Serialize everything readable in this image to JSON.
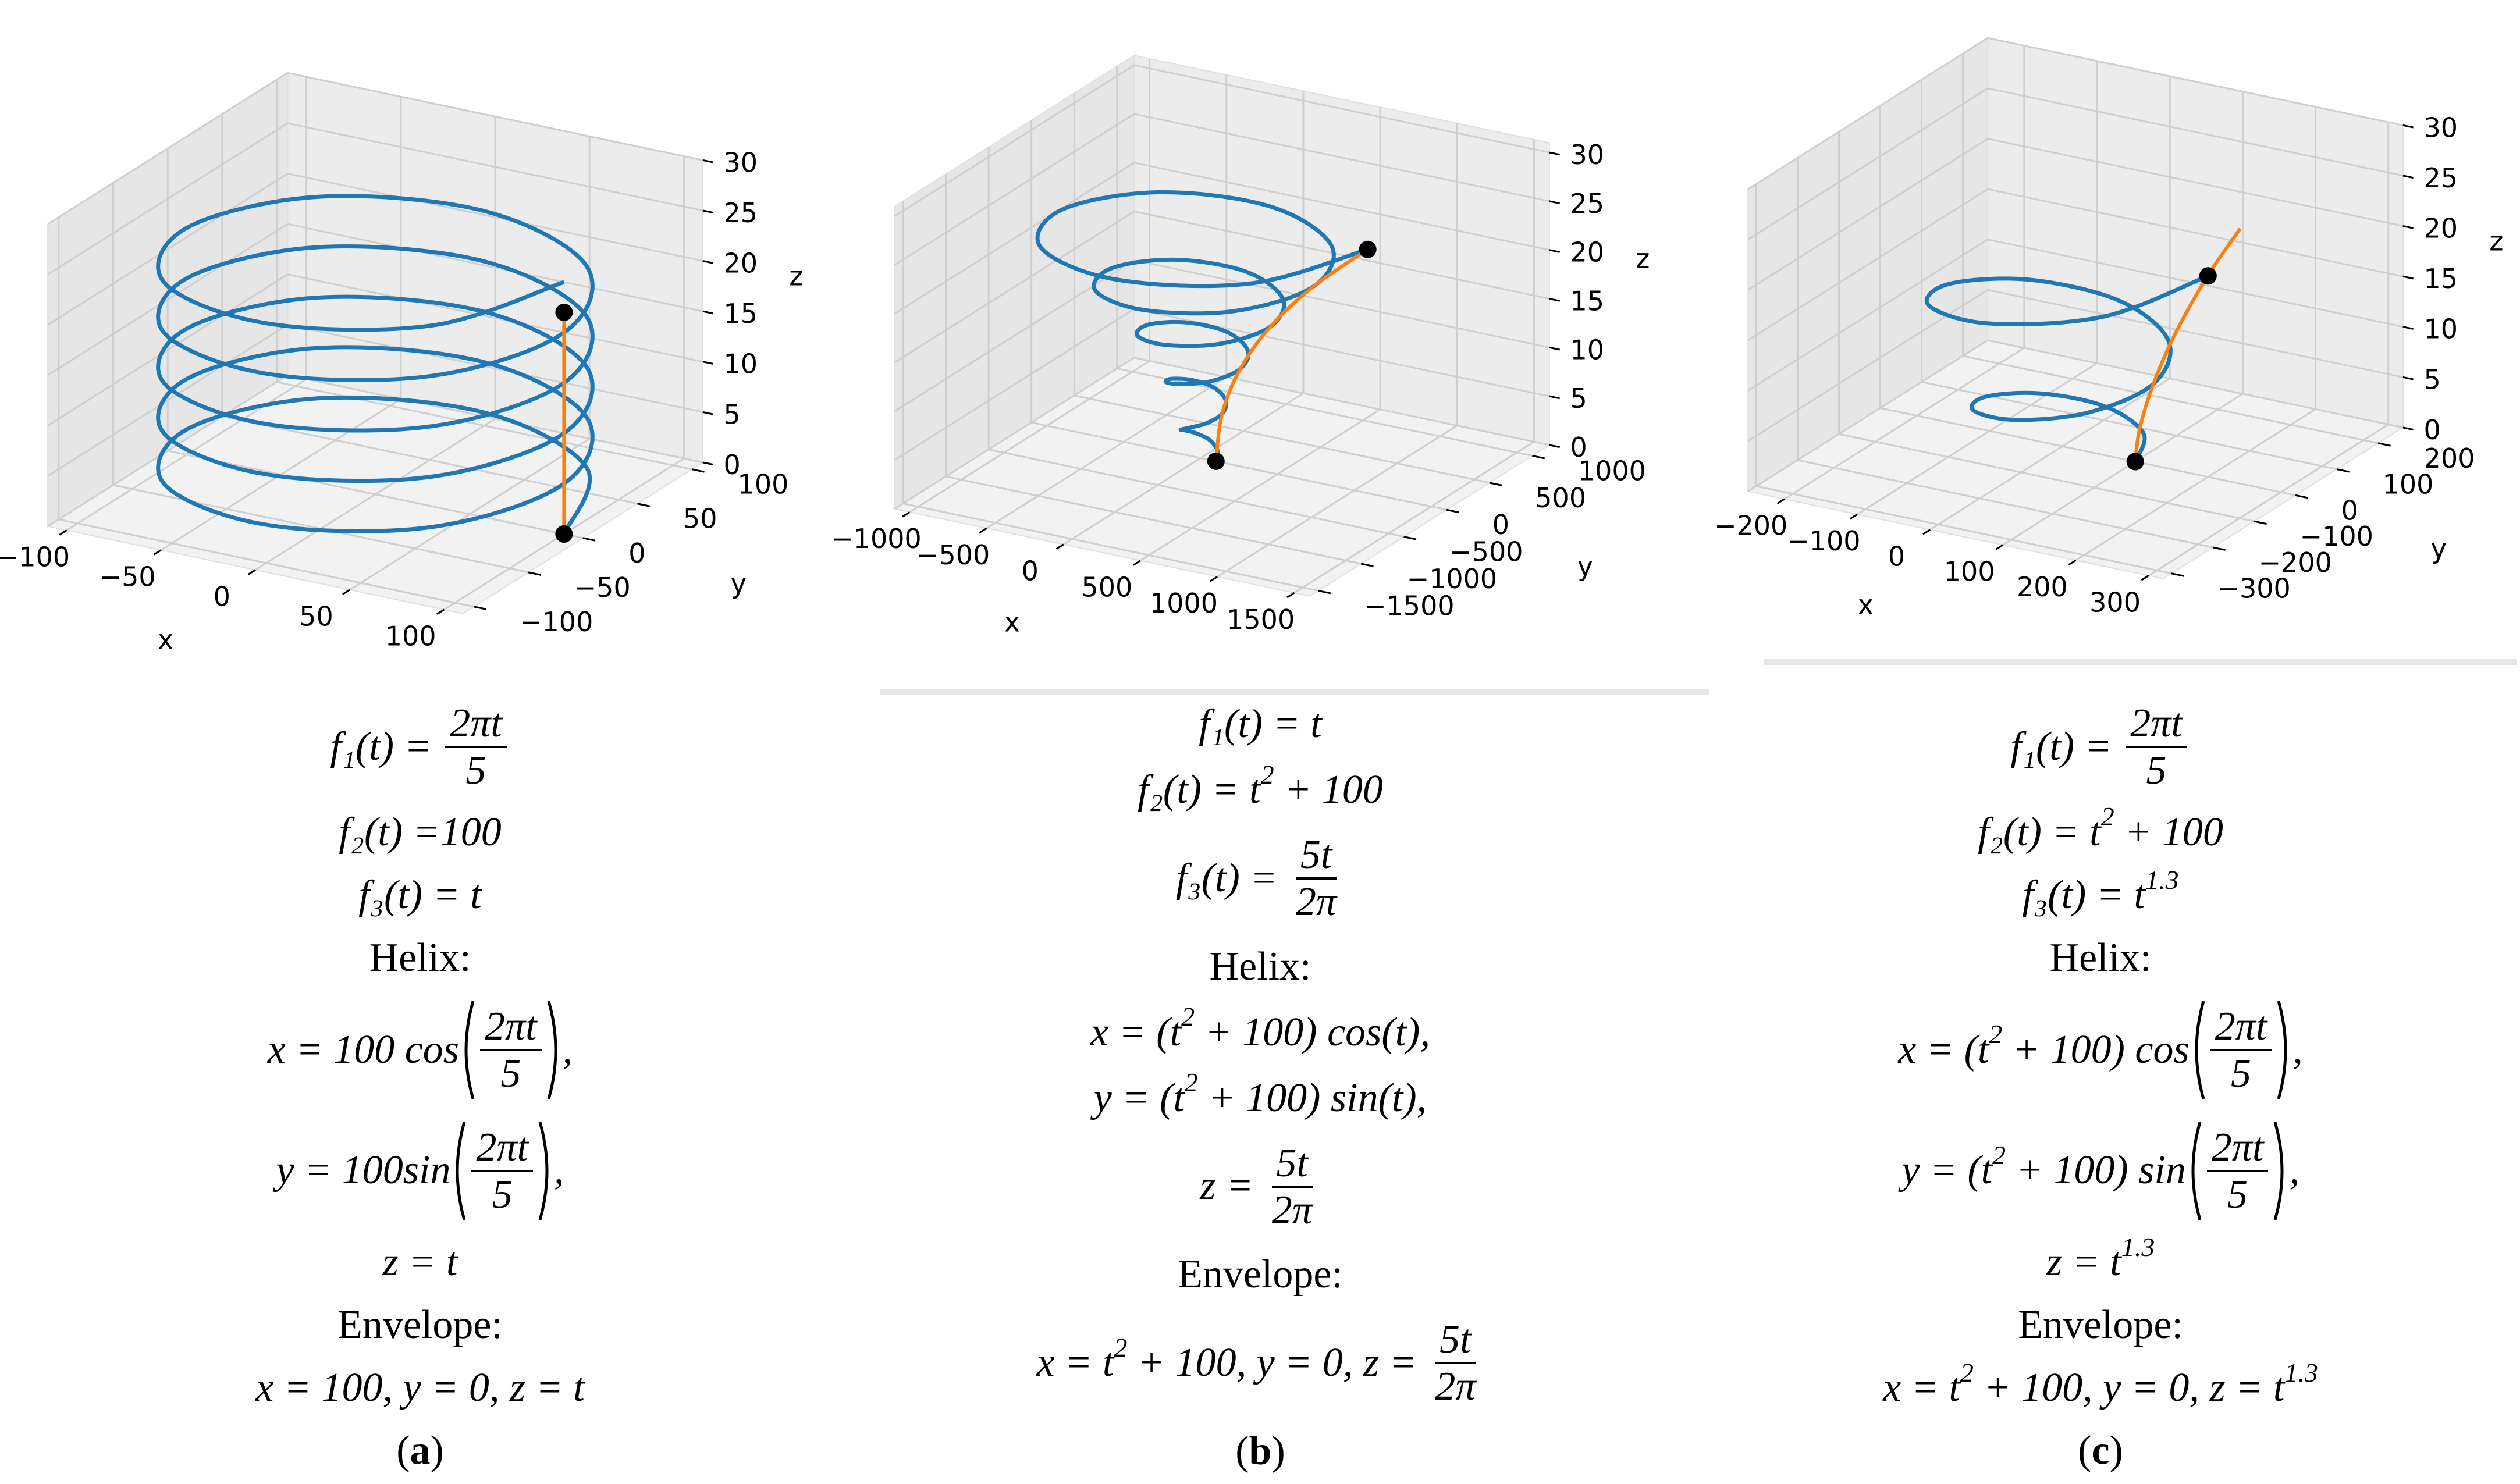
{
  "chart_data": [
    {
      "type": "line3d",
      "xlabel": "x",
      "ylabel": "y",
      "zlabel": "z",
      "xlim": [
        -110,
        110
      ],
      "ylim": [
        -110,
        110
      ],
      "zlim": [
        0,
        30
      ],
      "xticks": [
        {
          "value": -100,
          "label": "−100"
        },
        {
          "value": -50,
          "label": "−50"
        },
        0,
        50,
        100
      ],
      "yticks": [
        {
          "value": -100,
          "label": "−100"
        },
        {
          "value": -50,
          "label": "−50"
        },
        0,
        50,
        100
      ],
      "zticks": [
        0,
        5,
        10,
        15,
        20,
        25,
        30
      ],
      "series": [
        {
          "color": "#1f77b4",
          "x": [
            100,
            71,
            0,
            -71,
            -100,
            -71,
            0,
            71,
            100,
            71,
            0,
            -71,
            -100,
            -71,
            0,
            71,
            100,
            71,
            0,
            -71,
            -100,
            -71,
            0,
            71,
            100,
            71,
            0,
            -71,
            -100,
            -71,
            0,
            71,
            100,
            71,
            0,
            -71,
            -100,
            -71,
            0,
            71,
            100
          ],
          "y": [
            0,
            71,
            100,
            71,
            0,
            -71,
            -100,
            -71,
            0,
            71,
            100,
            71,
            0,
            -71,
            -100,
            -71,
            0,
            71,
            100,
            71,
            0,
            -71,
            -100,
            -71,
            0,
            71,
            100,
            71,
            0,
            -71,
            -100,
            -71,
            0,
            71,
            100,
            71,
            0,
            -71,
            -100,
            -71,
            0
          ],
          "z": [
            0,
            0.6,
            1.3,
            1.9,
            2.5,
            3.1,
            3.8,
            4.4,
            5,
            5.6,
            6.3,
            6.9,
            7.5,
            8.1,
            8.8,
            9.4,
            10,
            10.6,
            11.3,
            11.9,
            12.5,
            13.1,
            13.8,
            14.4,
            15,
            15.6,
            16.3,
            16.9,
            17.5,
            18.1,
            18.8,
            19.4,
            20,
            20.6,
            21.3,
            21.9,
            22.5,
            23.1,
            23.8,
            24.4,
            25
          ]
        },
        {
          "color": "#ff7f0e",
          "x": [
            100,
            100
          ],
          "y": [
            0,
            0
          ],
          "z": [
            0,
            22
          ]
        }
      ],
      "markers": {
        "color": "#000000",
        "x": [
          100,
          100
        ],
        "y": [
          0,
          0
        ],
        "z": [
          0,
          22
        ]
      }
    },
    {
      "type": "line3d",
      "xlabel": "x",
      "ylabel": "y",
      "zlabel": "z",
      "xlim": [
        -1100,
        1600
      ],
      "ylim": [
        -1600,
        1200
      ],
      "zlim": [
        0,
        31
      ],
      "xticks": [
        {
          "value": -1000,
          "label": "−1000"
        },
        {
          "value": -500,
          "label": "−500"
        },
        0,
        500,
        1000,
        1500
      ],
      "yticks": [
        {
          "value": -1500,
          "label": "−1500"
        },
        {
          "value": -1000,
          "label": "−1000"
        },
        {
          "value": -500,
          "label": "−500"
        },
        0,
        500,
        1000
      ],
      "zticks": [
        0,
        5,
        10,
        15,
        20,
        25,
        30
      ],
      "series": [
        {
          "color": "#1f77b4",
          "x": [
            100,
            71,
            0,
            -75,
            -110,
            -82,
            0,
            92,
            140,
            106,
            0,
            -123,
            -189,
            -144,
            0,
            169,
            258,
            197,
            0,
            -228,
            -347,
            -263,
            0,
            301,
            455,
            343,
            0,
            -389,
            -584,
            -438,
            0,
            490,
            732,
            546,
            0,
            -605,
            -900,
            -668,
            0,
            734,
            1087
          ],
          "y": [
            0,
            71,
            103,
            75,
            0,
            -82,
            -122,
            -92,
            0,
            106,
            162,
            123,
            0,
            -144,
            -221,
            -169,
            0,
            197,
            300,
            228,
            0,
            -263,
            -399,
            -301,
            0,
            343,
            517,
            389,
            0,
            -438,
            -655,
            -490,
            0,
            546,
            813,
            605,
            0,
            -668,
            -991,
            -734,
            0
          ],
          "z": [
            0,
            0.6,
            1.3,
            1.9,
            2.5,
            3.1,
            3.8,
            4.4,
            5,
            5.6,
            6.3,
            6.9,
            7.5,
            8.1,
            8.8,
            9.4,
            10,
            10.6,
            11.3,
            11.9,
            12.5,
            13.1,
            13.8,
            14.4,
            15,
            15.6,
            16.3,
            16.9,
            17.5,
            18.1,
            18.8,
            19.4,
            20,
            20.6,
            21.3,
            21.9,
            22.5,
            23.1,
            23.8,
            24.4,
            25
          ]
        },
        {
          "color": "#ff7f0e",
          "x": [
            100,
            140,
            258,
            455,
            732,
            1087
          ],
          "y": [
            0,
            0,
            0,
            0,
            0,
            0
          ],
          "z": [
            0,
            5,
            10,
            15,
            20,
            25
          ]
        }
      ],
      "markers": {
        "color": "#000000",
        "x": [
          100,
          1087
        ],
        "y": [
          0,
          0
        ],
        "z": [
          0,
          25
        ]
      }
    },
    {
      "type": "line3d",
      "xlabel": "x",
      "ylabel": "y",
      "zlabel": "z",
      "xlim": [
        -250,
        320
      ],
      "ylim": [
        -320,
        260
      ],
      "zlim": [
        0,
        30
      ],
      "xticks": [
        {
          "value": -200,
          "label": "−200"
        },
        {
          "value": -100,
          "label": "−100"
        },
        0,
        100,
        200,
        300
      ],
      "yticks": [
        {
          "value": -300,
          "label": "−300"
        },
        {
          "value": -200,
          "label": "−200"
        },
        {
          "value": -100,
          "label": "−100"
        },
        0,
        100,
        200
      ],
      "zticks": [
        0,
        5,
        10,
        15,
        20,
        25,
        30
      ],
      "series": [
        {
          "color": "#1f77b4",
          "x": [
            100,
            71,
            0,
            -73,
            -106,
            -78,
            0,
            84,
            125,
            93,
            0,
            -104,
            -156,
            -117,
            0,
            133,
            200
          ],
          "y": [
            0,
            71,
            102,
            73,
            0,
            -78,
            -114,
            -84,
            0,
            93,
            139,
            104,
            0,
            -117,
            -177,
            -133,
            0
          ],
          "z": [
            0,
            0.54,
            1.34,
            2.26,
            3.29,
            4.4,
            5.57,
            6.81,
            8.1,
            9.44,
            10.83,
            12.26,
            13.73,
            15.23,
            16.77,
            18.35,
            19.95
          ]
        },
        {
          "color": "#ff7f0e",
          "x": [
            100,
            106,
            125,
            156,
            200,
            244
          ],
          "y": [
            0,
            0,
            0,
            0,
            0,
            0
          ],
          "z": [
            0,
            3.3,
            8.1,
            13.7,
            20,
            25.3
          ]
        }
      ],
      "markers": {
        "color": "#000000",
        "x": [
          100,
          200
        ],
        "y": [
          0,
          0
        ],
        "z": [
          0,
          19.95
        ]
      }
    }
  ],
  "panels": [
    {
      "equations": [
        [
          {
            "t": "f₁(t) = "
          },
          {
            "frac": [
              "2πt",
              "5"
            ]
          }
        ],
        [
          {
            "t": "f₂(t) =100"
          }
        ],
        [
          {
            "t": "f₃(t) = t"
          }
        ],
        "Helix:",
        [
          {
            "t": "x = 100 cos"
          },
          {
            "pfrac": [
              "2πt",
              "5"
            ]
          },
          {
            "t": ","
          }
        ],
        [
          {
            "t": "y = 100sin"
          },
          {
            "pfrac": [
              "2πt",
              "5"
            ]
          },
          {
            "t": ","
          }
        ],
        [
          {
            "t": "z = t"
          }
        ],
        "Envelope:",
        [
          {
            "t": "x = 100, y = 0, z = t"
          }
        ]
      ],
      "caption": [
        "(",
        "a",
        ")"
      ]
    },
    {
      "equations": [
        [
          {
            "t": "f₁(t) = t"
          }
        ],
        [
          {
            "t": "f₂(t) = t"
          },
          {
            "sup": "2"
          },
          {
            "t": " + 100"
          }
        ],
        [
          {
            "t": "f₃(t) = "
          },
          {
            "frac": [
              "5t",
              "2π"
            ]
          }
        ],
        "Helix:",
        [
          {
            "t": "x = (t"
          },
          {
            "sup": "2"
          },
          {
            "t": " + 100) cos(t),"
          }
        ],
        [
          {
            "t": "y = (t"
          },
          {
            "sup": "2"
          },
          {
            "t": " + 100) sin(t),"
          }
        ],
        [
          {
            "t": "z = "
          },
          {
            "frac": [
              "5t",
              "2π"
            ]
          }
        ],
        "Envelope:",
        [
          {
            "t": "x = t"
          },
          {
            "sup": "2"
          },
          {
            "t": " + 100, y = 0, z = "
          },
          {
            "frac": [
              "5t",
              "2π"
            ]
          }
        ]
      ],
      "caption": [
        "(",
        "b",
        ")"
      ]
    },
    {
      "equations": [
        [
          {
            "t": "f₁(t) = "
          },
          {
            "frac": [
              "2πt",
              "5"
            ]
          }
        ],
        [
          {
            "t": "f₂(t) = t"
          },
          {
            "sup": "2"
          },
          {
            "t": " + 100"
          }
        ],
        [
          {
            "t": "f₃(t) = t"
          },
          {
            "sup": "1.3"
          }
        ],
        "Helix:",
        [
          {
            "t": "x = (t"
          },
          {
            "sup": "2"
          },
          {
            "t": " + 100) cos"
          },
          {
            "pfrac": [
              "2πt",
              "5"
            ]
          },
          {
            "t": ","
          }
        ],
        [
          {
            "t": "y = (t"
          },
          {
            "sup": "2"
          },
          {
            "t": " + 100) sin"
          },
          {
            "pfrac": [
              "2πt",
              "5"
            ]
          },
          {
            "t": ","
          }
        ],
        [
          {
            "t": "z = t"
          },
          {
            "sup": "1.3"
          }
        ],
        "Envelope:",
        [
          {
            "t": "x = t"
          },
          {
            "sup": "2"
          },
          {
            "t": " + 100, y = 0, z = t"
          },
          {
            "sup": "1.3"
          }
        ]
      ],
      "caption": [
        "(",
        "c",
        ")"
      ]
    }
  ]
}
